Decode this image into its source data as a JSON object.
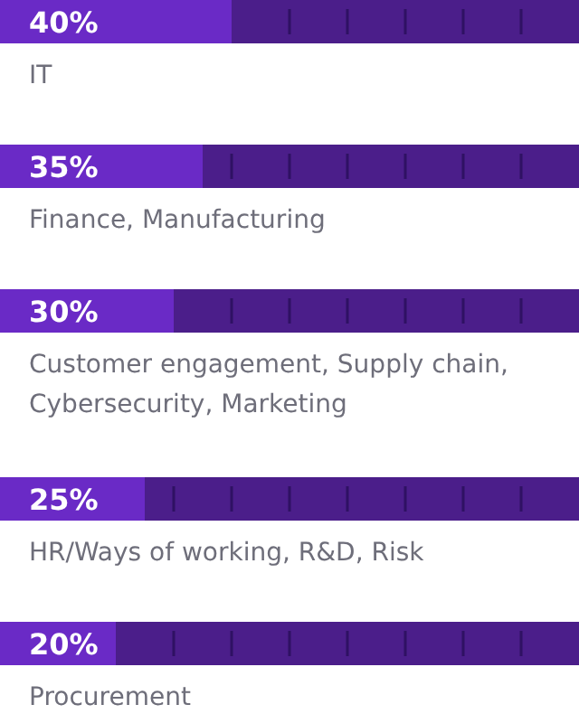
{
  "chart_data": {
    "type": "bar",
    "orientation": "horizontal",
    "stacked": true,
    "categories": [
      "IT",
      "Finance, Manufacturing",
      "Customer engagement, Supply chain, Cybersecurity, Marketing",
      "HR/Ways of working, R&D, Risk",
      "Procurement"
    ],
    "series": [
      {
        "color": "#6a2ac6",
        "values": [
          40,
          35,
          30,
          25,
          20
        ],
        "value_labels": [
          "40%",
          "35%",
          "30%",
          "25%",
          "20%"
        ]
      },
      {
        "color": "#4b1e8a",
        "values": [
          60,
          65,
          70,
          75,
          80
        ]
      }
    ],
    "xlim": [
      0,
      100
    ]
  }
}
